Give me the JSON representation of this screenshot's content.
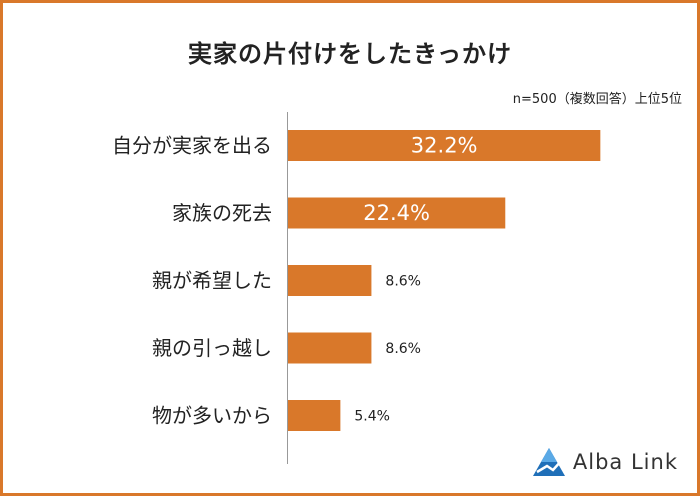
{
  "title": "実家の片付けをしたきっかけ",
  "note": "n=500（複数回答）上位5位",
  "brand": {
    "name": "Alba Link",
    "color": "#1f6fb8"
  },
  "colors": {
    "bar": "#d9782a",
    "frame": "#d9782a"
  },
  "chart_data": {
    "type": "bar",
    "orientation": "horizontal",
    "categories": [
      "自分が実家を出る",
      "家族の死去",
      "親が希望した",
      "親の引っ越し",
      "物が多いから"
    ],
    "values": [
      32.2,
      22.4,
      8.6,
      8.6,
      5.4
    ],
    "value_labels": [
      "32.2%",
      "22.4%",
      "8.6%",
      "8.6%",
      "5.4%"
    ],
    "unit": "%",
    "grid": false,
    "legend": "none"
  }
}
